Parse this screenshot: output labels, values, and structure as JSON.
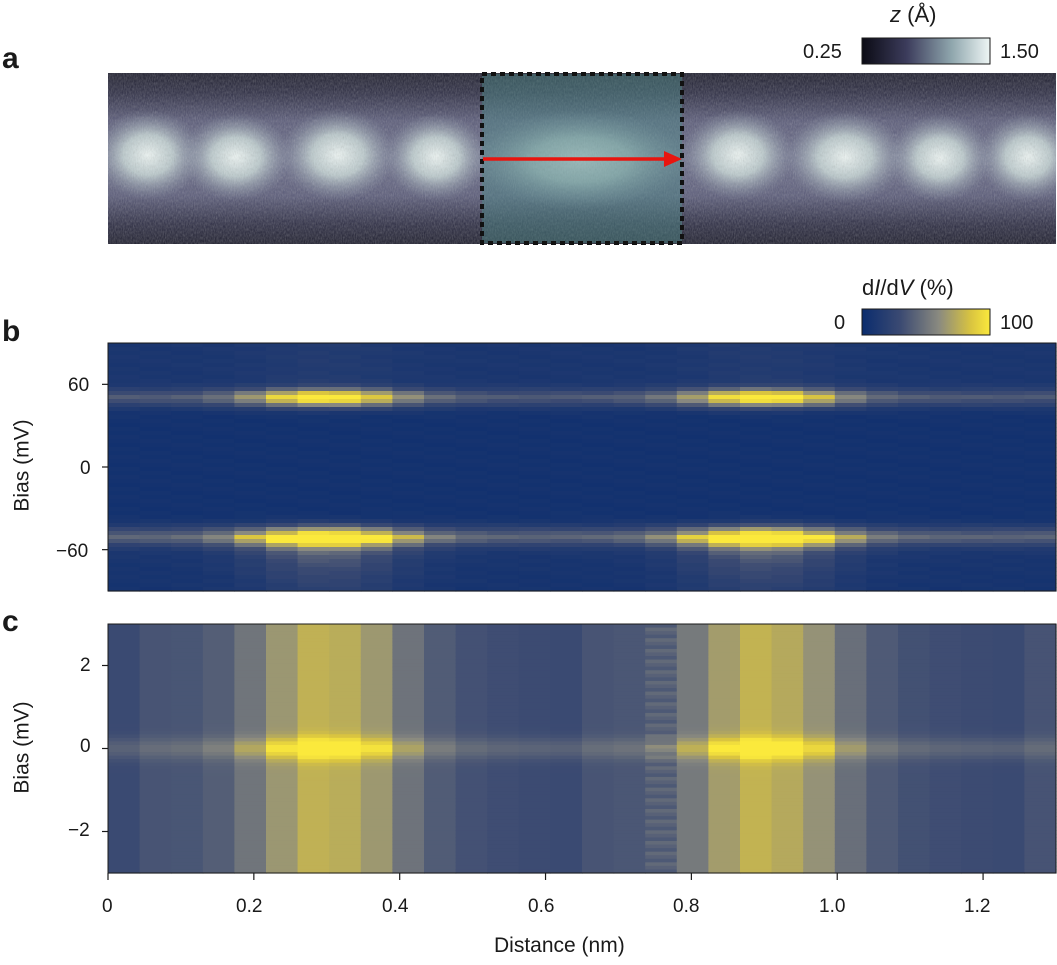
{
  "figure": {
    "panels": {
      "a": {
        "letter": "a"
      },
      "b": {
        "letter": "b"
      },
      "c": {
        "letter": "c"
      }
    },
    "colorbars": {
      "topo": {
        "title_var": "z",
        "title_unit": " (Å)",
        "min_label": "0.25",
        "max_label": "1.50",
        "colors": [
          "#0b0b14",
          "#3c3c5c",
          "#8fa6ad",
          "#eef6f5"
        ]
      },
      "didv": {
        "title_d1": "d",
        "title_I": "I",
        "title_slash": "/d",
        "title_V": "V",
        "title_unit": " (%)",
        "min_label": "0",
        "max_label": "100",
        "colors": [
          "#0a2c6e",
          "#3b4a72",
          "#8a8a80",
          "#d9c440",
          "#fbe93c"
        ]
      }
    },
    "panel_a": {
      "image_colors": {
        "dark": "#1c1c2c",
        "bright": "#e6f1ef",
        "box_overlay": "#4f8c8a"
      },
      "arrow_color": "#e8150f"
    }
  },
  "chart_data": [
    {
      "type": "heatmap",
      "panel": "b",
      "title": "",
      "xlabel": "Distance (nm)",
      "ylabel": "Bias (mV)",
      "xlim": [
        0,
        1.3
      ],
      "ylim": [
        -90,
        90
      ],
      "yticks": [
        60,
        0,
        -60
      ],
      "ytick_labels": [
        "60",
        "0",
        "−60"
      ],
      "colorbar_label": "dI/dV (%)",
      "colorbar_range": [
        0,
        100
      ],
      "features": [
        {
          "bias_mV": 50,
          "description": "upper coherence peak",
          "max_intensity_at_nm": [
            0.3,
            0.88
          ]
        },
        {
          "bias_mV": -50,
          "description": "lower coherence peak",
          "max_intensity_at_nm": [
            0.33,
            0.92
          ]
        }
      ]
    },
    {
      "type": "heatmap",
      "panel": "c",
      "title": "",
      "xlabel": "Distance (nm)",
      "ylabel": "Bias (mV)",
      "xlim": [
        0,
        1.3
      ],
      "ylim": [
        -3,
        3
      ],
      "yticks": [
        2,
        0,
        -2
      ],
      "ytick_labels": [
        "2",
        "0",
        "−2"
      ],
      "xticks": [
        0,
        0.2,
        0.4,
        0.6,
        0.8,
        1.0,
        1.2
      ],
      "xtick_labels": [
        "0",
        "0.2",
        "0.4",
        "0.6",
        "0.8",
        "1.0",
        "1.2"
      ],
      "colorbar_label": "dI/dV (%)",
      "colorbar_range": [
        0,
        100
      ],
      "features": [
        {
          "bias_mV": 0,
          "description": "zero-bias peak",
          "max_intensity_at_nm": [
            0.29,
            0.89
          ]
        }
      ]
    }
  ]
}
